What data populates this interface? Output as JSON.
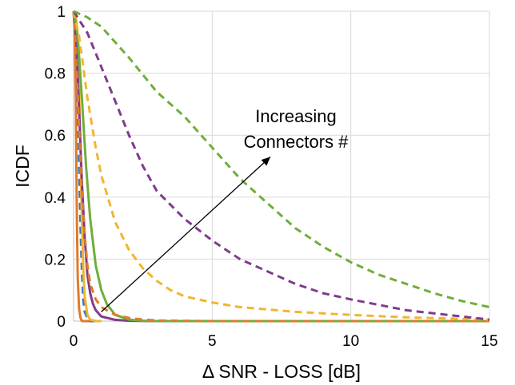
{
  "chart_data": {
    "type": "line",
    "title": "",
    "xlabel": "Δ SNR - LOSS [dB]",
    "ylabel": "ICDF",
    "xlim": [
      0,
      15
    ],
    "ylim": [
      0,
      1
    ],
    "xticks": [
      "0",
      "5",
      "10",
      "15"
    ],
    "yticks": [
      "0",
      "0.2",
      "0.4",
      "0.6",
      "0.8",
      "1"
    ],
    "grid": true,
    "legend": "none",
    "annotation": {
      "lines": [
        "Increasing",
        "Connectors #"
      ],
      "arrow_from": [
        1.0,
        0.03
      ],
      "arrow_to": [
        7.1,
        0.53
      ]
    },
    "series": [
      {
        "color": "#E07B2A",
        "style": "solid",
        "x": [
          0,
          0.02,
          0.05,
          0.08,
          0.1,
          0.12,
          0.15,
          0.2,
          0.25,
          0.3,
          0.4,
          0.5,
          0.6,
          0.8,
          1.0
        ],
        "y": [
          1,
          0.97,
          0.9,
          0.72,
          0.5,
          0.32,
          0.14,
          0.04,
          0.01,
          0,
          0,
          0,
          0,
          0,
          0
        ]
      },
      {
        "color": "#3B78C3",
        "style": "dashed",
        "x": [
          0,
          0.05,
          0.1,
          0.15,
          0.2,
          0.25,
          0.3,
          0.35,
          0.4,
          0.5,
          0.6,
          0.8,
          1.0
        ],
        "y": [
          1,
          0.96,
          0.88,
          0.7,
          0.5,
          0.3,
          0.16,
          0.07,
          0.03,
          0.01,
          0,
          0,
          0
        ]
      },
      {
        "color": "#F2B531",
        "style": "solid",
        "x": [
          0,
          0.1,
          0.15,
          0.2,
          0.25,
          0.3,
          0.35,
          0.4,
          0.5,
          0.6,
          0.8,
          1.0
        ],
        "y": [
          1,
          0.97,
          0.9,
          0.75,
          0.55,
          0.33,
          0.17,
          0.08,
          0.02,
          0.005,
          0,
          0
        ],
        "note": "thin yellow line"
      },
      {
        "color": "#7F3C8D",
        "style": "solid",
        "x": [
          0,
          0.1,
          0.2,
          0.3,
          0.4,
          0.5,
          0.6,
          0.7,
          0.8,
          1.0,
          1.5,
          2.0,
          3.0,
          15
        ],
        "y": [
          1,
          0.9,
          0.68,
          0.45,
          0.27,
          0.15,
          0.09,
          0.055,
          0.035,
          0.015,
          0.004,
          0.001,
          0,
          0
        ]
      },
      {
        "color": "#6FAE3C",
        "style": "solid",
        "x": [
          0,
          0.15,
          0.3,
          0.45,
          0.6,
          0.8,
          1.0,
          1.2,
          1.5,
          2.0,
          2.5,
          3.0,
          15
        ],
        "y": [
          1,
          0.92,
          0.72,
          0.5,
          0.33,
          0.18,
          0.1,
          0.055,
          0.02,
          0.005,
          0.001,
          0,
          0
        ]
      },
      {
        "color": "#E07B2A",
        "style": "dashed",
        "x": [
          0,
          0.1,
          0.2,
          0.3,
          0.4,
          0.5,
          0.6,
          0.8,
          1.0,
          1.5,
          2.0,
          2.5,
          3.0,
          5.0,
          15
        ],
        "y": [
          1,
          0.85,
          0.62,
          0.42,
          0.28,
          0.18,
          0.12,
          0.07,
          0.045,
          0.02,
          0.01,
          0.005,
          0.002,
          0,
          0
        ]
      },
      {
        "color": "#F2B531",
        "style": "dashed",
        "x": [
          0,
          0.2,
          0.5,
          0.8,
          1.0,
          1.5,
          2.0,
          2.5,
          3.0,
          3.5,
          4.0,
          5.0,
          6.0,
          8.0,
          10.0,
          12.0,
          15.0
        ],
        "y": [
          1,
          0.92,
          0.72,
          0.56,
          0.47,
          0.32,
          0.23,
          0.17,
          0.13,
          0.1,
          0.08,
          0.06,
          0.045,
          0.03,
          0.02,
          0.012,
          0.005
        ]
      },
      {
        "color": "#7F3C8D",
        "style": "dashed",
        "x": [
          0,
          0.5,
          1.0,
          1.5,
          2.0,
          2.5,
          3.0,
          4.0,
          5.0,
          6.0,
          7.0,
          8.0,
          9.0,
          10.0,
          12.0,
          15.0
        ],
        "y": [
          1,
          0.93,
          0.82,
          0.71,
          0.6,
          0.5,
          0.42,
          0.33,
          0.26,
          0.2,
          0.16,
          0.12,
          0.09,
          0.07,
          0.035,
          0.005
        ]
      },
      {
        "color": "#6FAE3C",
        "style": "dashed",
        "x": [
          0,
          0.5,
          1.0,
          2.0,
          3.0,
          4.0,
          5.0,
          6.0,
          7.0,
          8.0,
          9.0,
          10.0,
          11.0,
          12.0,
          13.0,
          14.0,
          15.0
        ],
        "y": [
          1,
          0.98,
          0.95,
          0.85,
          0.74,
          0.66,
          0.56,
          0.46,
          0.38,
          0.3,
          0.24,
          0.19,
          0.15,
          0.12,
          0.09,
          0.065,
          0.045
        ]
      }
    ]
  }
}
